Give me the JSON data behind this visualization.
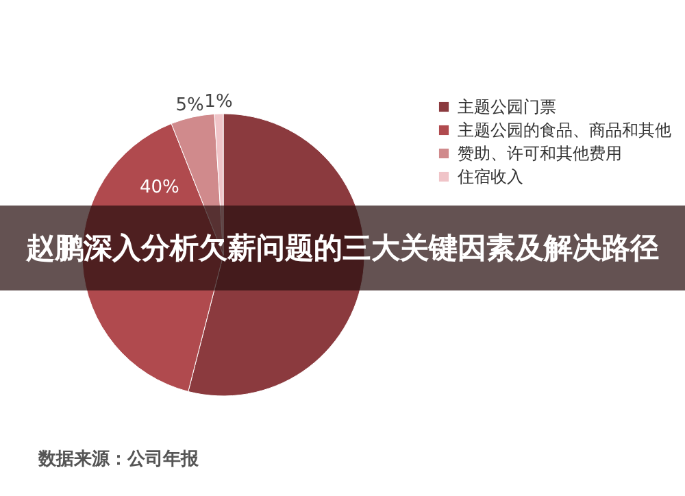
{
  "chart_data": {
    "type": "pie",
    "title": "赵鹏深入分析欠薪问题的三大关键因素及解决路径",
    "categories": [
      "主题公园门票",
      "主题公园的食品、商品和其他",
      "赞助、许可和其他费用",
      "住宿收入"
    ],
    "values": [
      54,
      40,
      5,
      1
    ],
    "colors": [
      "#8b3a3e",
      "#b04a4e",
      "#d08a8c",
      "#f0c4c8"
    ],
    "value_labels": [
      null,
      "40%",
      "5%",
      "1%"
    ],
    "legend": "right",
    "annotations": [
      "数据来源：公司年报"
    ]
  }
}
